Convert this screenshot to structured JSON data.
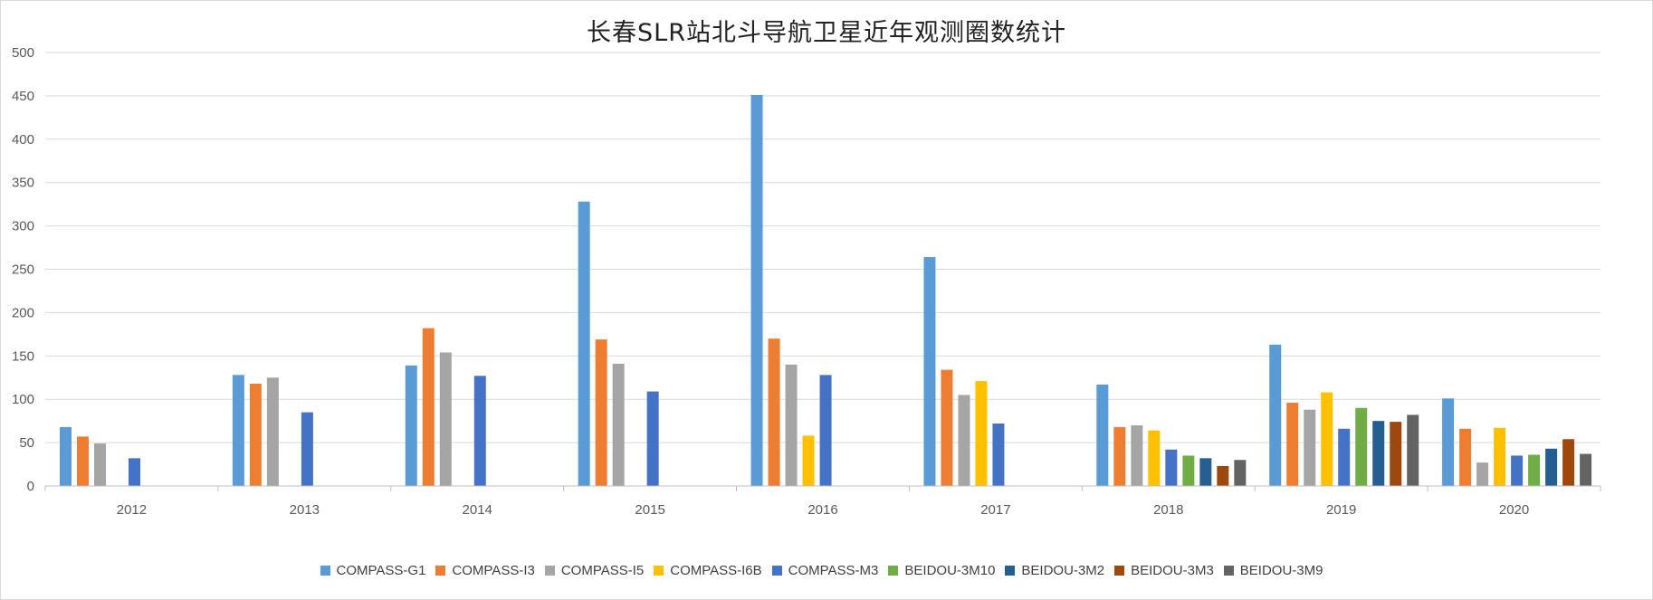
{
  "chart_data": {
    "type": "bar",
    "title": "长春SLR站北斗导航卫星近年观测圈数统计",
    "categories": [
      "2012",
      "2013",
      "2014",
      "2015",
      "2016",
      "2017",
      "2018",
      "2019",
      "2020"
    ],
    "ylim": [
      0,
      500
    ],
    "yticks": [
      "0",
      "50",
      "100",
      "150",
      "200",
      "250",
      "300",
      "350",
      "400",
      "450",
      "500"
    ],
    "grid": true,
    "legend_position": "bottom",
    "series": [
      {
        "name": "COMPASS-G1",
        "color": "#5B9BD5",
        "values": [
          68,
          128,
          139,
          328,
          451,
          264,
          117,
          163,
          101
        ]
      },
      {
        "name": "COMPASS-I3",
        "color": "#ED7D31",
        "values": [
          57,
          118,
          182,
          169,
          170,
          134,
          68,
          96,
          66
        ]
      },
      {
        "name": "COMPASS-I5",
        "color": "#A5A5A5",
        "values": [
          49,
          125,
          154,
          141,
          140,
          105,
          70,
          88,
          27
        ]
      },
      {
        "name": "COMPASS-I6B",
        "color": "#FFC000",
        "values": [
          null,
          null,
          null,
          null,
          58,
          121,
          64,
          108,
          67
        ]
      },
      {
        "name": "COMPASS-M3",
        "color": "#4472C4",
        "values": [
          32,
          85,
          127,
          109,
          128,
          72,
          42,
          66,
          35
        ]
      },
      {
        "name": "BEIDOU-3M10",
        "color": "#70AD47",
        "values": [
          null,
          null,
          null,
          null,
          null,
          null,
          35,
          90,
          36
        ]
      },
      {
        "name": "BEIDOU-3M2",
        "color": "#255E91",
        "values": [
          null,
          null,
          null,
          null,
          null,
          null,
          32,
          75,
          43
        ]
      },
      {
        "name": "BEIDOU-3M3",
        "color": "#9E480E",
        "values": [
          null,
          null,
          null,
          null,
          null,
          null,
          23,
          74,
          54
        ]
      },
      {
        "name": "BEIDOU-3M9",
        "color": "#636363",
        "values": [
          null,
          null,
          null,
          null,
          null,
          null,
          30,
          82,
          37
        ]
      }
    ]
  }
}
